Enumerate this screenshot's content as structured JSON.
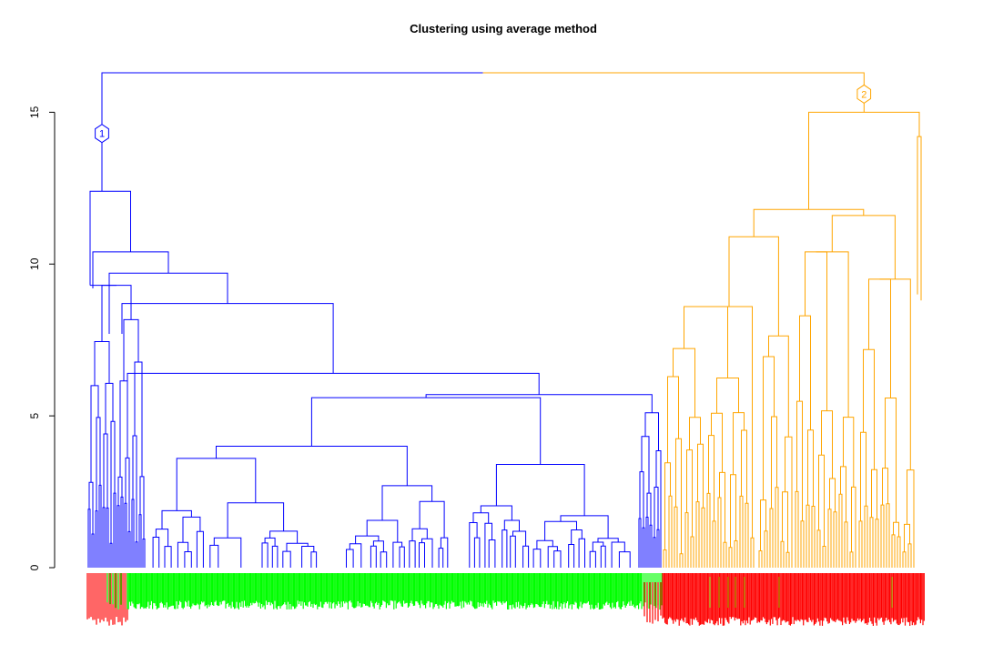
{
  "chart_data": {
    "type": "dendrogram",
    "title": "Clustering using average method",
    "xlabel": "",
    "ylabel": "",
    "ylim": [
      0,
      16.3
    ],
    "yticks": [
      0,
      5,
      10,
      15
    ],
    "grid": false,
    "legend": "none",
    "root_height": 16.3,
    "clusters": [
      {
        "id": "1",
        "color": "#0000ff",
        "height": 12.4,
        "marker_height": 14.3,
        "leaf_label_color_main": "#00ff00",
        "leaf_label_color_edges": "#ff0000",
        "subclusters": [
          {
            "height": 10.4,
            "spread": "left"
          },
          {
            "height": 9.7,
            "spread": "left"
          },
          {
            "height": 9.3,
            "spread": "left"
          },
          {
            "height": 8.7,
            "spread": "left"
          },
          {
            "height": 7.7,
            "spread": "left"
          },
          {
            "height": 6.6,
            "spread": "mid"
          },
          {
            "height": 6.4,
            "spread": "mid"
          },
          {
            "height": 5.8,
            "spread": "mid"
          },
          {
            "height": 5.7,
            "spread": "right"
          },
          {
            "height": 5.1,
            "spread": "right"
          },
          {
            "height": 4.0,
            "spread": "mid"
          },
          {
            "height": 3.5,
            "spread": "right"
          },
          {
            "height": 2.7,
            "spread": "mid"
          }
        ]
      },
      {
        "id": "2",
        "color": "#ffa500",
        "height": 15.0,
        "marker_height": 15.6,
        "leaf_label_color_main": "#ff0000",
        "leaf_label_color_edges": "#ff0000",
        "subclusters": [
          {
            "height": 14.2,
            "spread": "right"
          },
          {
            "height": 11.8,
            "spread": "mid"
          },
          {
            "height": 11.6,
            "spread": "right"
          },
          {
            "height": 11.2,
            "spread": "right"
          },
          {
            "height": 10.9,
            "spread": "left"
          },
          {
            "height": 10.0,
            "spread": "mid"
          },
          {
            "height": 9.5,
            "spread": "mid"
          },
          {
            "height": 8.7,
            "spread": "left"
          },
          {
            "height": 8.4,
            "spread": "mid"
          },
          {
            "height": 8.0,
            "spread": "left"
          },
          {
            "height": 7.3,
            "spread": "mid"
          },
          {
            "height": 6.8,
            "spread": "right"
          }
        ]
      }
    ]
  }
}
